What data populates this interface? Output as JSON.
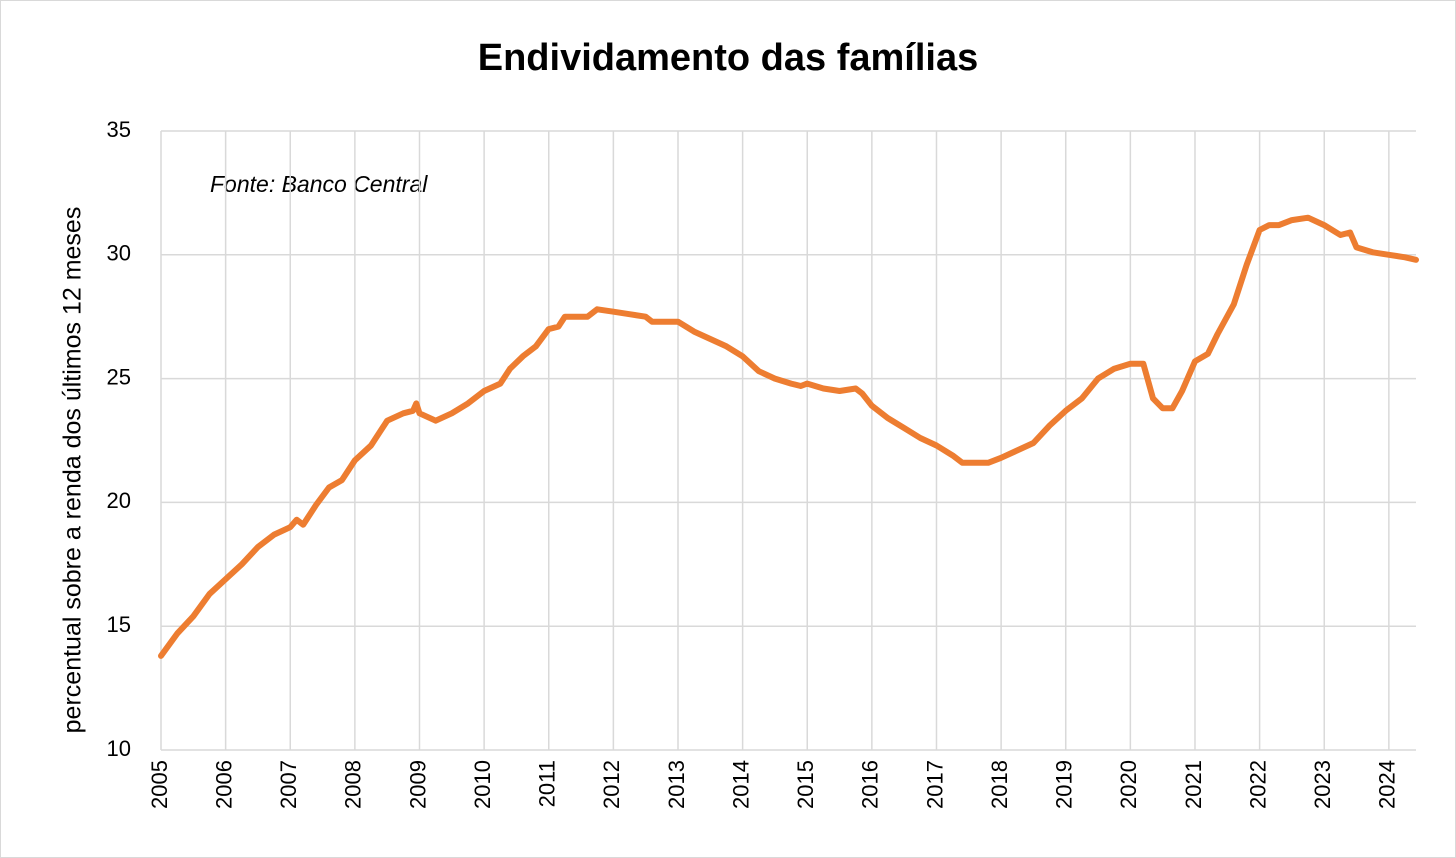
{
  "chart_data": {
    "type": "line",
    "title": "Endividamento das famílias",
    "ylabel": "percentual sobre a renda dos últimos 12 meses",
    "annotation": "Fonte: Banco Central",
    "x": [
      2005.0,
      2005.25,
      2005.5,
      2005.75,
      2006.0,
      2006.25,
      2006.5,
      2006.75,
      2007.0,
      2007.1,
      2007.2,
      2007.4,
      2007.6,
      2007.8,
      2008.0,
      2008.25,
      2008.5,
      2008.75,
      2008.9,
      2008.95,
      2009.0,
      2009.25,
      2009.5,
      2009.75,
      2010.0,
      2010.25,
      2010.4,
      2010.6,
      2010.8,
      2011.0,
      2011.15,
      2011.25,
      2011.5,
      2011.6,
      2011.75,
      2012.0,
      2012.25,
      2012.5,
      2012.6,
      2013.0,
      2013.25,
      2013.5,
      2013.75,
      2014.0,
      2014.25,
      2014.5,
      2014.75,
      2014.9,
      2015.0,
      2015.25,
      2015.5,
      2015.75,
      2015.85,
      2016.0,
      2016.25,
      2016.5,
      2016.75,
      2017.0,
      2017.25,
      2017.4,
      2017.6,
      2017.8,
      2018.0,
      2018.25,
      2018.5,
      2018.75,
      2019.0,
      2019.25,
      2019.5,
      2019.75,
      2020.0,
      2020.2,
      2020.35,
      2020.5,
      2020.65,
      2020.8,
      2021.0,
      2021.2,
      2021.35,
      2021.6,
      2021.8,
      2022.0,
      2022.15,
      2022.3,
      2022.5,
      2022.75,
      2023.0,
      2023.25,
      2023.4,
      2023.5,
      2023.75,
      2024.0,
      2024.25,
      2024.42
    ],
    "series": [
      {
        "name": "Endividamento",
        "color": "#ed7d31",
        "values": [
          13.8,
          14.7,
          15.4,
          16.3,
          16.9,
          17.5,
          18.2,
          18.7,
          19.0,
          19.3,
          19.1,
          19.9,
          20.6,
          20.9,
          21.7,
          22.3,
          23.3,
          23.6,
          23.7,
          24.0,
          23.6,
          23.3,
          23.6,
          24.0,
          24.5,
          24.8,
          25.4,
          25.9,
          26.3,
          27.0,
          27.1,
          27.5,
          27.5,
          27.5,
          27.8,
          27.7,
          27.6,
          27.5,
          27.3,
          27.3,
          26.9,
          26.6,
          26.3,
          25.9,
          25.3,
          25.0,
          24.8,
          24.7,
          24.8,
          24.6,
          24.5,
          24.6,
          24.4,
          23.9,
          23.4,
          23.0,
          22.6,
          22.3,
          21.9,
          21.6,
          21.6,
          21.6,
          21.8,
          22.1,
          22.4,
          23.1,
          23.7,
          24.2,
          25.0,
          25.4,
          25.6,
          25.6,
          24.2,
          23.8,
          23.8,
          24.5,
          25.7,
          26.0,
          26.8,
          28.0,
          29.6,
          31.0,
          31.2,
          31.2,
          31.4,
          31.5,
          31.2,
          30.8,
          30.9,
          30.3,
          30.1,
          30.0,
          29.9,
          29.8
        ]
      }
    ],
    "xlim": [
      2005,
      2024.42
    ],
    "xticks": [
      2005,
      2006,
      2007,
      2008,
      2009,
      2010,
      2011,
      2012,
      2013,
      2014,
      2015,
      2016,
      2017,
      2018,
      2019,
      2020,
      2021,
      2022,
      2023,
      2024
    ],
    "ylim": [
      10,
      35
    ],
    "yticks": [
      10,
      15,
      20,
      25,
      30,
      35
    ],
    "grid": true
  }
}
